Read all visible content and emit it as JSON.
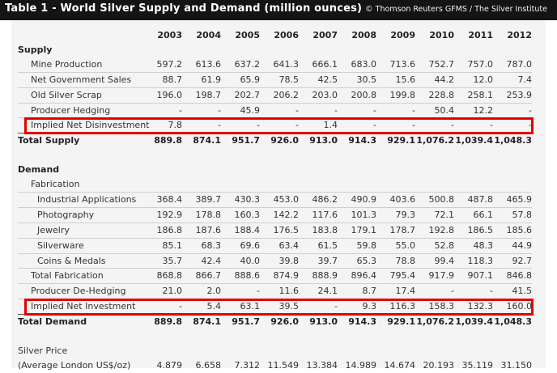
{
  "header": {
    "title": "Table 1 - World Silver Supply and Demand (million ounces)",
    "source": "© Thomson Reuters GFMS / The Silver Institute"
  },
  "years": [
    "2003",
    "2004",
    "2005",
    "2006",
    "2007",
    "2008",
    "2009",
    "2010",
    "2011",
    "2012"
  ],
  "rows": [
    {
      "id": "supply-heading",
      "label": "Supply",
      "type": "section",
      "indent": 0,
      "values": []
    },
    {
      "id": "mine-production",
      "label": "Mine Production",
      "type": "line",
      "indent": 1,
      "values": [
        "597.2",
        "613.6",
        "637.2",
        "641.3",
        "666.1",
        "683.0",
        "713.6",
        "752.7",
        "757.0",
        "787.0"
      ]
    },
    {
      "id": "net-government-sales",
      "label": "Net Government Sales",
      "type": "line",
      "indent": 1,
      "values": [
        "88.7",
        "61.9",
        "65.9",
        "78.5",
        "42.5",
        "30.5",
        "15.6",
        "44.2",
        "12.0",
        "7.4"
      ]
    },
    {
      "id": "old-silver-scrap",
      "label": "Old Silver Scrap",
      "type": "line",
      "indent": 1,
      "values": [
        "196.0",
        "198.7",
        "202.7",
        "206.2",
        "203.0",
        "200.8",
        "199.8",
        "228.8",
        "258.1",
        "253.9"
      ]
    },
    {
      "id": "producer-hedging",
      "label": "Producer Hedging",
      "type": "line",
      "indent": 1,
      "values": [
        "-",
        "-",
        "45.9",
        "-",
        "-",
        "-",
        "-",
        "50.4",
        "12.2",
        "-"
      ]
    },
    {
      "id": "implied-net-disinvestment",
      "label": "Implied Net Disinvestment",
      "type": "line",
      "indent": 1,
      "values": [
        "7.8",
        "-",
        "-",
        "-",
        "1.4",
        "-",
        "-",
        "-",
        "-",
        "-"
      ]
    },
    {
      "id": "total-supply",
      "label": "Total Supply",
      "type": "total",
      "indent": 0,
      "values": [
        "889.8",
        "874.1",
        "951.7",
        "926.0",
        "913.0",
        "914.3",
        "929.1",
        "1,076.2",
        "1,039.4",
        "1,048.3"
      ]
    },
    {
      "id": "spacer-1",
      "label": "",
      "type": "blank",
      "indent": 0,
      "values": []
    },
    {
      "id": "demand-heading",
      "label": "Demand",
      "type": "section",
      "indent": 0,
      "values": []
    },
    {
      "id": "fabrication-heading",
      "label": "Fabrication",
      "type": "sub",
      "indent": 1,
      "values": []
    },
    {
      "id": "industrial-applications",
      "label": "Industrial Applications",
      "type": "line",
      "indent": 2,
      "values": [
        "368.4",
        "389.7",
        "430.3",
        "453.0",
        "486.2",
        "490.9",
        "403.6",
        "500.8",
        "487.8",
        "465.9"
      ]
    },
    {
      "id": "photography",
      "label": "Photography",
      "type": "line",
      "indent": 2,
      "values": [
        "192.9",
        "178.8",
        "160.3",
        "142.2",
        "117.6",
        "101.3",
        "79.3",
        "72.1",
        "66.1",
        "57.8"
      ]
    },
    {
      "id": "jewelry",
      "label": "Jewelry",
      "type": "line",
      "indent": 2,
      "values": [
        "186.8",
        "187.6",
        "188.4",
        "176.5",
        "183.8",
        "179.1",
        "178.7",
        "192.8",
        "186.5",
        "185.6"
      ]
    },
    {
      "id": "silverware",
      "label": "Silverware",
      "type": "line",
      "indent": 2,
      "values": [
        "85.1",
        "68.3",
        "69.6",
        "63.4",
        "61.5",
        "59.8",
        "55.0",
        "52.8",
        "48.3",
        "44.9"
      ]
    },
    {
      "id": "coins-medals",
      "label": "Coins & Medals",
      "type": "line",
      "indent": 2,
      "values": [
        "35.7",
        "42.4",
        "40.0",
        "39.8",
        "39.7",
        "65.3",
        "78.8",
        "99.4",
        "118.3",
        "92.7"
      ]
    },
    {
      "id": "total-fabrication",
      "label": "Total Fabrication",
      "type": "line",
      "indent": 1,
      "values": [
        "868.8",
        "866.7",
        "888.6",
        "874.9",
        "888.9",
        "896.4",
        "795.4",
        "917.9",
        "907.1",
        "846.8"
      ]
    },
    {
      "id": "producer-de-hedging",
      "label": "Producer De-Hedging",
      "type": "line",
      "indent": 1,
      "values": [
        "21.0",
        "2.0",
        "-",
        "11.6",
        "24.1",
        "8.7",
        "17.4",
        "-",
        "-",
        "41.5"
      ]
    },
    {
      "id": "implied-net-investment",
      "label": "Implied Net Investment",
      "type": "line",
      "indent": 1,
      "values": [
        "-",
        "5.4",
        "63.1",
        "39.5",
        "-",
        "9.3",
        "116.3",
        "158.3",
        "132.3",
        "160.0"
      ]
    },
    {
      "id": "total-demand",
      "label": "Total Demand",
      "type": "total",
      "indent": 0,
      "values": [
        "889.8",
        "874.1",
        "951.7",
        "926.0",
        "913.0",
        "914.3",
        "929.1",
        "1,076.2",
        "1,039.4",
        "1,048.3"
      ]
    },
    {
      "id": "spacer-2",
      "label": "",
      "type": "blank",
      "indent": 0,
      "values": []
    },
    {
      "id": "silver-price-heading",
      "label": "Silver Price",
      "type": "plain",
      "indent": 0,
      "values": []
    },
    {
      "id": "average-london-price",
      "label": "(Average London US$/oz)",
      "type": "plain",
      "indent": 0,
      "values": [
        "4.879",
        "6.658",
        "7.312",
        "11.549",
        "13.384",
        "14.989",
        "14.674",
        "20.193",
        "35.119",
        "31.150"
      ]
    }
  ],
  "highlight_color": "#e60000"
}
